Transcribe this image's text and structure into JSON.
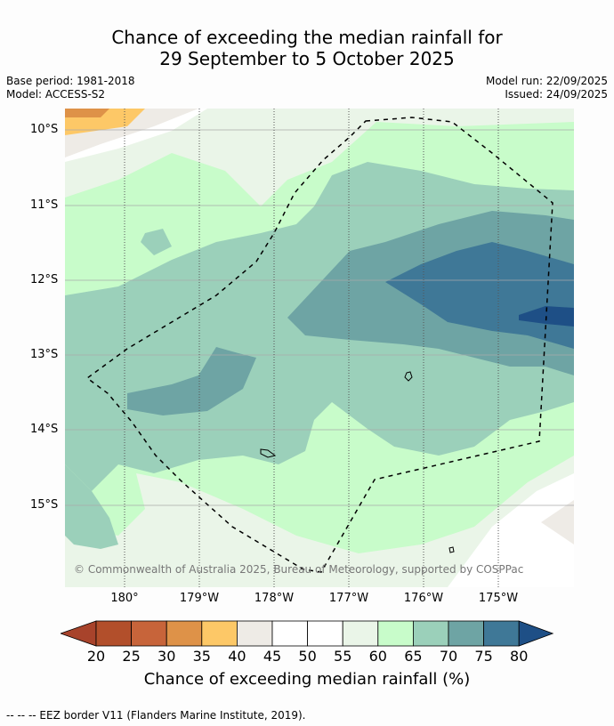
{
  "title_line1": "Chance of exceeding the median rainfall for",
  "title_line2": "29 September to 5 October 2025",
  "meta_left": [
    "Base period: 1981-2018",
    "Model: ACCESS-S2"
  ],
  "meta_right": [
    "Model run: 22/09/2025",
    "Issued: 24/09/2025"
  ],
  "lat_labels": [
    "10°S",
    "11°S",
    "12°S",
    "13°S",
    "14°S",
    "15°S"
  ],
  "lon_labels": [
    "180°",
    "179°W",
    "178°W",
    "177°W",
    "176°W",
    "175°W"
  ],
  "copyright": "© Commonwealth of Australia 2025, Bureau of Meteorology, supported by COSPPac",
  "colorbar": {
    "ticks": [
      "20",
      "25",
      "30",
      "35",
      "40",
      "45",
      "50",
      "55",
      "60",
      "65",
      "70",
      "75",
      "80"
    ],
    "colors": [
      "#a8432b",
      "#b24f2b",
      "#c7643a",
      "#de9248",
      "#fdc867",
      "#eeebe6",
      "#ffffff",
      "#ffffff",
      "#eaf5e8",
      "#c8fcca",
      "#9bd0ba",
      "#6ea4a4",
      "#3f7897",
      "#1e4f86"
    ],
    "label": "Chance of exceeding median rainfall (%)"
  },
  "footnote": "--  --  -- EEZ border V11 (Flanders Marine Institute, 2019)."
}
